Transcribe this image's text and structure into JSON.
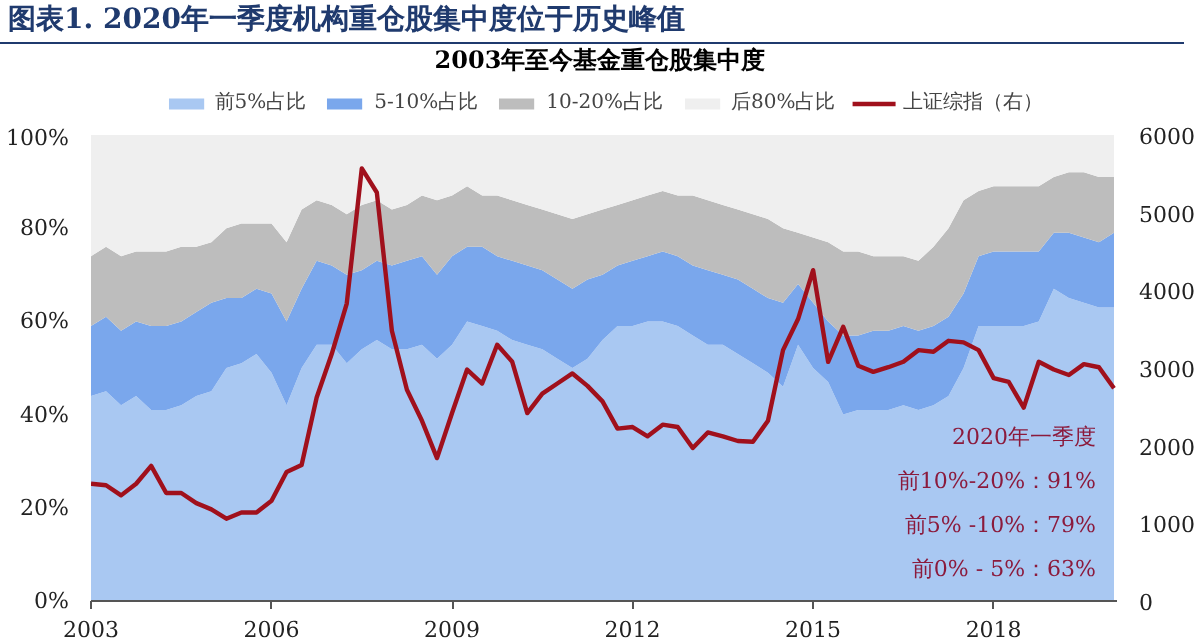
{
  "chart_data": {
    "type": "area",
    "stacked": true,
    "title": "图表1. 2020年一季度机构重仓股集中度位于历史峰值",
    "subtitle": "2003年至今基金重仓股集中度",
    "x": [
      2003.0,
      2003.25,
      2003.5,
      2003.75,
      2004.0,
      2004.25,
      2004.5,
      2004.75,
      2005.0,
      2005.25,
      2005.5,
      2005.75,
      2006.0,
      2006.25,
      2006.5,
      2006.75,
      2007.0,
      2007.25,
      2007.5,
      2007.75,
      2008.0,
      2008.25,
      2008.5,
      2008.75,
      2009.0,
      2009.25,
      2009.5,
      2009.75,
      2010.0,
      2010.25,
      2010.5,
      2010.75,
      2011.0,
      2011.25,
      2011.5,
      2011.75,
      2012.0,
      2012.25,
      2012.5,
      2012.75,
      2013.0,
      2013.25,
      2013.5,
      2013.75,
      2014.0,
      2014.25,
      2014.5,
      2014.75,
      2015.0,
      2015.25,
      2015.5,
      2015.75,
      2016.0,
      2016.25,
      2016.5,
      2016.75,
      2017.0,
      2017.25,
      2017.5,
      2017.75,
      2018.0,
      2018.25,
      2018.5,
      2018.75,
      2019.0,
      2019.25,
      2019.5,
      2019.75,
      2020.0
    ],
    "series": [
      {
        "name": "前5%占比",
        "color": "#a9c8f2",
        "values": [
          44,
          45,
          42,
          44,
          41,
          41,
          42,
          44,
          45,
          50,
          51,
          53,
          49,
          42,
          50,
          55,
          55,
          51,
          54,
          56,
          54,
          54,
          55,
          52,
          55,
          60,
          59,
          58,
          56,
          55,
          54,
          52,
          50,
          52,
          56,
          59,
          59,
          60,
          60,
          59,
          57,
          55,
          55,
          53,
          51,
          49,
          46,
          55,
          50,
          47,
          40,
          41,
          41,
          41,
          42,
          41,
          42,
          44,
          50,
          59,
          59,
          59,
          59,
          60,
          67,
          65,
          64,
          63,
          63
        ]
      },
      {
        "name": "5-10%占比",
        "color": "#7aa7ec",
        "values": [
          15,
          16,
          16,
          16,
          18,
          18,
          18,
          18,
          19,
          15,
          14,
          14,
          17,
          18,
          17,
          18,
          17,
          19,
          17,
          17,
          18,
          19,
          19,
          18,
          19,
          16,
          17,
          16,
          17,
          17,
          17,
          17,
          17,
          17,
          14,
          13,
          14,
          14,
          15,
          15,
          15,
          16,
          15,
          16,
          16,
          16,
          18,
          13,
          14,
          13,
          17,
          16,
          17,
          17,
          17,
          17,
          17,
          17,
          16,
          15,
          16,
          16,
          16,
          15,
          12,
          14,
          14,
          14,
          16
        ]
      },
      {
        "name": "10-20%占比",
        "color": "#bdbdbd",
        "values": [
          15,
          15,
          16,
          15,
          16,
          16,
          16,
          14,
          13,
          15,
          16,
          14,
          15,
          17,
          17,
          13,
          13,
          13,
          14,
          13,
          12,
          12,
          13,
          16,
          13,
          13,
          11,
          13,
          13,
          13,
          13,
          14,
          15,
          14,
          14,
          13,
          13,
          13,
          13,
          13,
          15,
          15,
          15,
          15,
          16,
          17,
          16,
          11,
          14,
          17,
          18,
          18,
          16,
          16,
          15,
          15,
          17,
          19,
          20,
          14,
          14,
          14,
          14,
          14,
          12,
          13,
          14,
          14,
          12
        ]
      },
      {
        "name": "后80%占比",
        "color": "#efefef",
        "values": [
          26,
          24,
          26,
          25,
          25,
          25,
          24,
          24,
          23,
          20,
          19,
          19,
          19,
          23,
          16,
          14,
          15,
          17,
          15,
          14,
          16,
          15,
          13,
          14,
          13,
          11,
          13,
          13,
          14,
          15,
          16,
          17,
          18,
          17,
          16,
          15,
          14,
          13,
          12,
          13,
          13,
          14,
          15,
          16,
          17,
          18,
          20,
          21,
          22,
          23,
          25,
          25,
          26,
          26,
          26,
          27,
          24,
          20,
          14,
          12,
          11,
          11,
          11,
          11,
          9,
          8,
          8,
          9,
          9
        ]
      },
      {
        "name": "上证综指（右）",
        "type": "line",
        "axis": "y2",
        "color": "#a0101c",
        "values": [
          1510,
          1490,
          1360,
          1510,
          1740,
          1390,
          1390,
          1260,
          1180,
          1060,
          1140,
          1140,
          1290,
          1660,
          1750,
          2620,
          3180,
          3830,
          5570,
          5260,
          3480,
          2720,
          2320,
          1840,
          2420,
          2980,
          2800,
          3300,
          3080,
          2420,
          2670,
          2800,
          2930,
          2770,
          2570,
          2220,
          2240,
          2120,
          2270,
          2240,
          1970,
          2170,
          2120,
          2060,
          2050,
          2320,
          3230,
          3630,
          4260,
          3080,
          3530,
          3030,
          2950,
          3010,
          3080,
          3230,
          3210,
          3350,
          3330,
          3230,
          2870,
          2820,
          2490,
          3080,
          2980,
          2910,
          3050,
          3010,
          2740
        ]
      }
    ],
    "xlim": [
      2003,
      2020.05
    ],
    "xticks": [
      2003,
      2006,
      2009,
      2012,
      2015,
      2018
    ],
    "ylim": [
      0,
      100
    ],
    "yticks": [
      {
        "value": 0,
        "label": "0%"
      },
      {
        "value": 20,
        "label": "20%"
      },
      {
        "value": 40,
        "label": "40%"
      },
      {
        "value": 60,
        "label": "60%"
      },
      {
        "value": 80,
        "label": "80%"
      },
      {
        "value": 100,
        "label": "100%"
      }
    ],
    "y2lim": [
      0,
      6000
    ],
    "y2ticks": [
      0,
      1000,
      2000,
      3000,
      4000,
      5000,
      6000
    ],
    "annotations": [
      "2020年一季度",
      "前10%-20%：91%",
      "前5% -10%：79%",
      "前0% - 5%：63%"
    ],
    "legend": "top",
    "grid": false
  }
}
